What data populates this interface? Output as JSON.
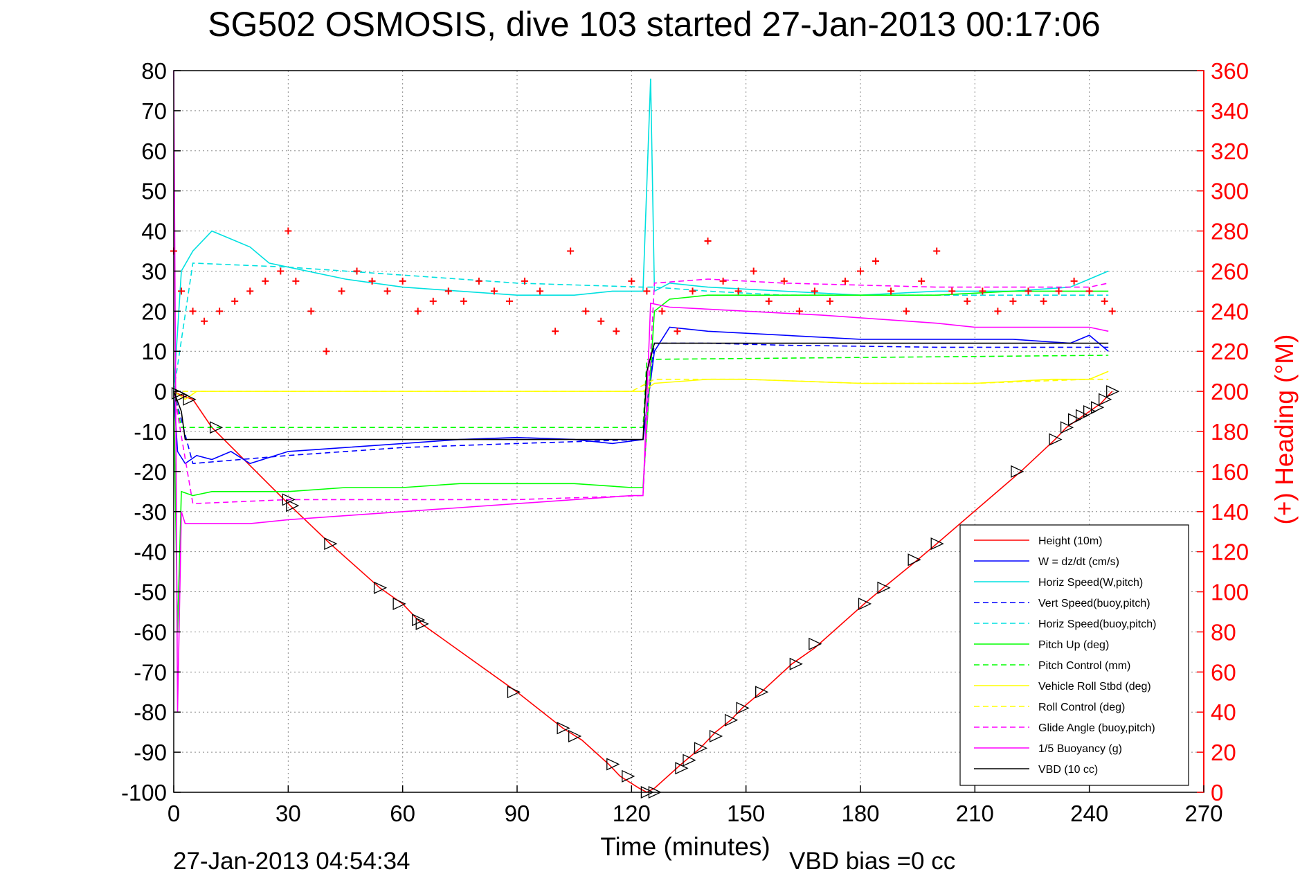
{
  "chart_data": {
    "type": "line",
    "title": "SG502 OSMOSIS, dive 103 started 27-Jan-2013 00:17:06",
    "xlabel": "Time (minutes)",
    "ylabel_right": "(+) Heading (°M)",
    "xlim": [
      0,
      270
    ],
    "ylim": [
      -100,
      80
    ],
    "ylim_right": [
      0,
      360
    ],
    "xticks": [
      0,
      30,
      60,
      90,
      120,
      150,
      180,
      210,
      240,
      270
    ],
    "yticks": [
      80,
      70,
      60,
      50,
      40,
      30,
      20,
      10,
      0,
      -10,
      -20,
      -30,
      -40,
      -50,
      -60,
      -70,
      -80,
      -90,
      -100
    ],
    "yticks_right": [
      360,
      340,
      320,
      300,
      280,
      260,
      240,
      220,
      200,
      180,
      160,
      140,
      120,
      100,
      80,
      60,
      40,
      20,
      0
    ],
    "grid": true,
    "legend_position": "bottom-right",
    "footer_left": "27-Jan-2013 04:54:34",
    "footer_right": "VBD bias =0 cc",
    "series": [
      {
        "name": "Height (10m)",
        "color": "#ff0000",
        "style": "solid",
        "x": [
          0,
          2,
          5,
          10,
          30,
          41,
          54,
          60,
          65,
          90,
          102,
          107,
          114,
          117,
          122,
          124,
          126,
          133,
          138,
          142,
          146,
          149,
          154,
          162,
          168,
          181,
          186,
          195,
          200,
          222,
          231,
          234,
          237,
          240,
          243,
          246
        ],
        "y": [
          0,
          -1,
          -2,
          -9,
          -28,
          -38,
          -49,
          -53,
          -58,
          -75,
          -84,
          -87,
          -93,
          -96,
          -99,
          -100,
          -99,
          -93,
          -89,
          -85,
          -82,
          -79,
          -75,
          -68,
          -64,
          -53,
          -49,
          -42,
          -38,
          -20,
          -12,
          -9,
          -7,
          -5,
          -3,
          0
        ]
      },
      {
        "name": "W = dz/dt (cm/s)",
        "color": "#0000ff",
        "style": "solid",
        "x": [
          0,
          1,
          3,
          6,
          10,
          15,
          20,
          30,
          45,
          60,
          75,
          90,
          105,
          115,
          123,
          126,
          130,
          140,
          160,
          180,
          200,
          220,
          235,
          240,
          245
        ],
        "y": [
          0,
          -15,
          -18,
          -16,
          -17,
          -15,
          -18,
          -15,
          -14,
          -13,
          -12,
          -11.5,
          -12,
          -13,
          -12,
          10,
          16,
          15,
          14,
          13,
          13,
          13,
          12,
          14,
          10
        ]
      },
      {
        "name": "Horiz Speed(W,pitch)",
        "color": "#00e0e0",
        "style": "solid",
        "x": [
          0,
          2,
          5,
          10,
          15,
          20,
          25,
          30,
          45,
          60,
          75,
          90,
          105,
          115,
          123,
          125,
          126,
          130,
          140,
          160,
          180,
          200,
          220,
          235,
          240,
          245
        ],
        "y": [
          0,
          30,
          35,
          40,
          38,
          36,
          32,
          31,
          28,
          26,
          25,
          24,
          24,
          25,
          25,
          78,
          25,
          27,
          26,
          25,
          24,
          25,
          25,
          26,
          28,
          30
        ]
      },
      {
        "name": "Vert Speed(buoy,pitch)",
        "color": "#0000ff",
        "style": "dashed",
        "x": [
          0,
          5,
          30,
          60,
          90,
          123,
          126,
          140,
          160,
          200,
          245
        ],
        "y": [
          0,
          -18,
          -16,
          -14,
          -13,
          -12,
          12,
          12,
          11.5,
          11,
          11
        ]
      },
      {
        "name": "Horiz Speed(buoy,pitch)",
        "color": "#00e0e0",
        "style": "dashed",
        "x": [
          0,
          5,
          30,
          60,
          90,
          123,
          126,
          140,
          160,
          200,
          245
        ],
        "y": [
          0,
          32,
          31,
          29,
          27,
          26,
          26,
          25,
          24,
          24,
          24
        ]
      },
      {
        "name": "Pitch Up (deg)",
        "color": "#00ff00",
        "style": "solid",
        "x": [
          0,
          1,
          2,
          5,
          10,
          20,
          30,
          45,
          60,
          75,
          90,
          105,
          120,
          123,
          126,
          130,
          140,
          160,
          180,
          200,
          220,
          240,
          245
        ],
        "y": [
          0,
          -60,
          -25,
          -26,
          -25,
          -25,
          -25,
          -24,
          -24,
          -23,
          -23,
          -23,
          -24,
          -24,
          20,
          23,
          24,
          24,
          24,
          24,
          25,
          25,
          25
        ]
      },
      {
        "name": "Pitch Control (mm)",
        "color": "#00ff00",
        "style": "dashed",
        "x": [
          0,
          2,
          123,
          124,
          126,
          245
        ],
        "y": [
          0,
          -9,
          -9,
          8,
          8,
          9
        ]
      },
      {
        "name": "Vehicle Roll Stbd (deg)",
        "color": "#ffff00",
        "style": "solid",
        "x": [
          0,
          3,
          6,
          15,
          30,
          31,
          35,
          45,
          60,
          90,
          105,
          120,
          123,
          126,
          140,
          150,
          180,
          210,
          230,
          240,
          245
        ],
        "y": [
          0,
          -2,
          0,
          0,
          0,
          0,
          0,
          0,
          0,
          0,
          0,
          0,
          0,
          2,
          3,
          3,
          2,
          2,
          3,
          3,
          5
        ]
      },
      {
        "name": "Roll Control (deg)",
        "color": "#ffff00",
        "style": "dashed",
        "x": [
          0,
          5,
          30,
          60,
          90,
          120,
          126,
          150,
          180,
          210,
          240,
          245
        ],
        "y": [
          0,
          0,
          0,
          0,
          0,
          0,
          3,
          3,
          2,
          2,
          3,
          3
        ]
      },
      {
        "name": "Glide Angle (buoy,pitch)",
        "color": "#ff00ff",
        "style": "dashed",
        "x": [
          0,
          5,
          30,
          60,
          90,
          123,
          126,
          140,
          160,
          200,
          240,
          245
        ],
        "y": [
          0,
          -28,
          -27,
          -27,
          -27,
          -26,
          27,
          28,
          27,
          26,
          26,
          27
        ]
      },
      {
        "name": "1/5 Buoyancy (g)",
        "color": "#ff00ff",
        "style": "solid",
        "x": [
          0,
          1,
          2,
          3,
          5,
          20,
          30,
          45,
          60,
          75,
          90,
          105,
          120,
          123,
          125,
          130,
          150,
          170,
          200,
          210,
          230,
          240,
          245
        ],
        "y": [
          80,
          -80,
          -30,
          -33,
          -33,
          -33,
          -32,
          -31,
          -30,
          -29,
          -28,
          -27,
          -26,
          -26,
          22,
          21,
          20,
          19,
          17,
          16,
          16,
          16,
          15
        ]
      },
      {
        "name": "VBD (10 cc)",
        "color": "#000000",
        "style": "solid",
        "x": [
          0,
          2,
          3,
          123,
          124,
          126,
          245
        ],
        "y": [
          0,
          -5,
          -12,
          -12,
          5,
          12,
          12
        ]
      },
      {
        "name": "Heading",
        "axis": "right",
        "color": "#ff0000",
        "marker": "+",
        "x": [
          0,
          2,
          5,
          8,
          12,
          16,
          20,
          24,
          28,
          30,
          32,
          36,
          40,
          44,
          48,
          52,
          56,
          60,
          64,
          68,
          72,
          76,
          80,
          84,
          88,
          92,
          96,
          100,
          104,
          108,
          112,
          116,
          120,
          124,
          128,
          132,
          136,
          140,
          144,
          148,
          152,
          156,
          160,
          164,
          168,
          172,
          176,
          180,
          184,
          188,
          192,
          196,
          200,
          204,
          208,
          212,
          216,
          220,
          224,
          228,
          232,
          236,
          240,
          244,
          246
        ],
        "y": [
          270,
          250,
          240,
          235,
          240,
          245,
          250,
          255,
          260,
          280,
          255,
          240,
          220,
          250,
          260,
          255,
          250,
          255,
          240,
          245,
          250,
          245,
          255,
          250,
          245,
          255,
          250,
          230,
          270,
          240,
          235,
          230,
          255,
          250,
          240,
          230,
          250,
          275,
          255,
          250,
          260,
          245,
          255,
          240,
          250,
          245,
          255,
          260,
          265,
          250,
          240,
          255,
          270,
          250,
          245,
          250,
          240,
          245,
          250,
          245,
          250,
          255,
          250,
          245,
          240
        ]
      }
    ],
    "markers_height": {
      "symbol": "triangle",
      "x": [
        1,
        2,
        4,
        11,
        30,
        31,
        41,
        54,
        59,
        64,
        65,
        89,
        102,
        105,
        115,
        119,
        124,
        126,
        133,
        135,
        138,
        142,
        146,
        149,
        154,
        163,
        168,
        181,
        186,
        194,
        200,
        221,
        231,
        234,
        236,
        238,
        240,
        242,
        244,
        246
      ],
      "y": [
        -0.5,
        -1,
        -2,
        -9,
        -27,
        -28.5,
        -38,
        -49,
        -53,
        -57,
        -58,
        -75,
        -84,
        -86,
        -93,
        -96,
        -100,
        -100,
        -94,
        -92,
        -89,
        -86,
        -82,
        -79,
        -75,
        -68,
        -63,
        -53,
        -49,
        -42,
        -38,
        -20,
        -12,
        -9,
        -7,
        -6,
        -5,
        -4,
        -2,
        0
      ]
    }
  }
}
